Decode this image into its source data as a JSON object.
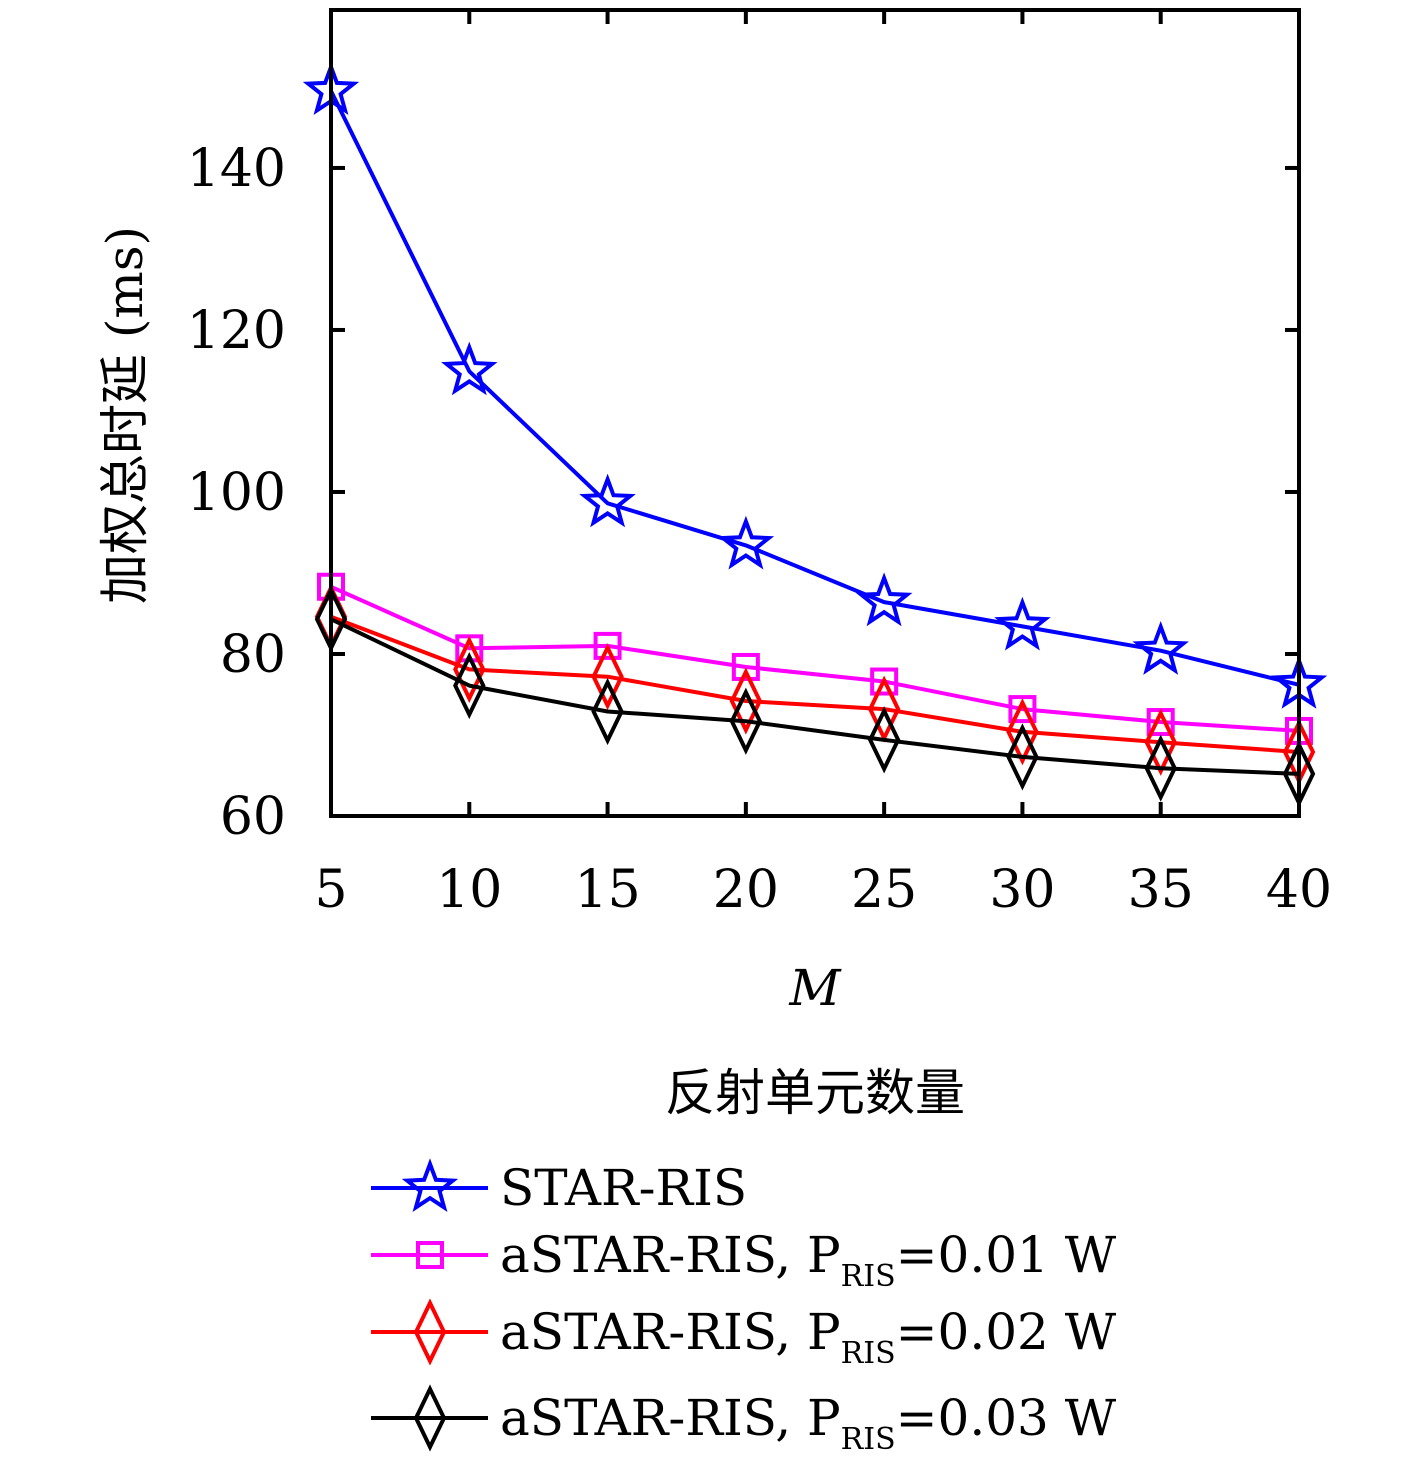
{
  "chart_data": {
    "type": "line",
    "title": "",
    "xlabel": "M",
    "xlabel_cn": "反射单元数量",
    "ylabel": "加权总时延 (ms)",
    "x": [
      5,
      10,
      15,
      20,
      25,
      30,
      35,
      40
    ],
    "xticks": [
      "5",
      "10",
      "15",
      "20",
      "25",
      "30",
      "35",
      "40"
    ],
    "yticks": [
      "60",
      "80",
      "100",
      "120",
      "140"
    ],
    "ytick_values": [
      60,
      80,
      100,
      120,
      140
    ],
    "xlim": [
      5,
      40
    ],
    "ylim": [
      60,
      160
    ],
    "grid": false,
    "legend_position": "bottom",
    "series": [
      {
        "name": "STAR-RIS",
        "legend_main": "STAR-RIS",
        "legend_sub": "",
        "legend_tail": "",
        "color": "#0000ff",
        "marker": "star",
        "values": [
          149.5,
          114.9,
          98.6,
          93.4,
          86.4,
          83.4,
          80.4,
          76.2
        ]
      },
      {
        "name": "aSTAR-RIS, P_RIS=0.01 W",
        "legend_main": "aSTAR-RIS, P",
        "legend_sub": "RIS",
        "legend_tail": "=0.01 W",
        "color": "#ff00ff",
        "marker": "square",
        "values": [
          88.3,
          80.7,
          81.0,
          78.4,
          76.6,
          73.2,
          71.6,
          70.5
        ]
      },
      {
        "name": "aSTAR-RIS, P_RIS=0.02 W",
        "legend_main": "aSTAR-RIS, P",
        "legend_sub": "RIS",
        "legend_tail": "=0.02 W",
        "color": "#ff0000",
        "marker": "diamond",
        "values": [
          84.6,
          78.1,
          77.2,
          74.2,
          73.2,
          70.4,
          69.1,
          67.9
        ]
      },
      {
        "name": "aSTAR-RIS, P_RIS=0.03 W",
        "legend_main": "aSTAR-RIS, P",
        "legend_sub": "RIS",
        "legend_tail": "=0.03 W",
        "color": "#000000",
        "marker": "diamond",
        "values": [
          84.3,
          76.1,
          72.9,
          71.7,
          69.4,
          67.3,
          65.9,
          65.2
        ]
      }
    ]
  }
}
